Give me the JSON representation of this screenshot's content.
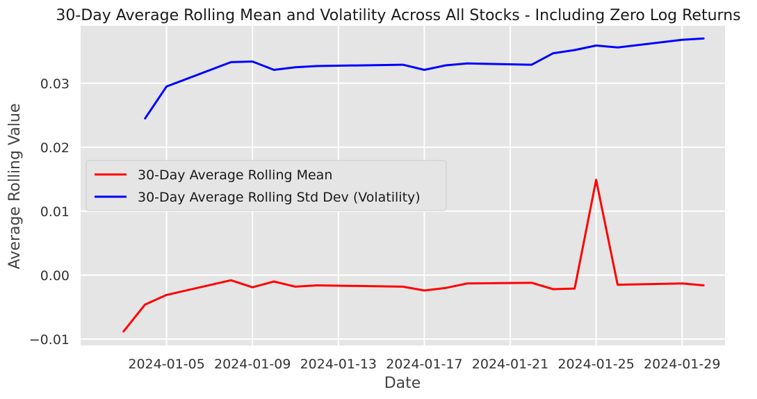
{
  "chart_data": {
    "type": "line",
    "title": "30-Day Average Rolling Mean and Volatility Across All Stocks - Including Zero Log Returns",
    "xlabel": "Date",
    "ylabel": "Average Rolling Value",
    "xlim": [
      "2024-01-01",
      "2024-01-31"
    ],
    "ylim": [
      -0.011,
      0.039
    ],
    "x_ticks": [
      "2024-01-05",
      "2024-01-09",
      "2024-01-13",
      "2024-01-17",
      "2024-01-21",
      "2024-01-25",
      "2024-01-29"
    ],
    "y_ticks": [
      -0.01,
      0.0,
      0.01,
      0.02,
      0.03
    ],
    "y_tick_labels": [
      "−0.01",
      "0.00",
      "0.01",
      "0.02",
      "0.03"
    ],
    "grid": true,
    "legend_position": "center-left",
    "series": [
      {
        "name": "30-Day Average Rolling Mean",
        "color": "#ff0000",
        "points": [
          [
            "2024-01-03",
            -0.0088
          ],
          [
            "2024-01-04",
            -0.0046
          ],
          [
            "2024-01-05",
            -0.0031
          ],
          [
            "2024-01-08",
            -0.0008
          ],
          [
            "2024-01-09",
            -0.0019
          ],
          [
            "2024-01-10",
            -0.001
          ],
          [
            "2024-01-11",
            -0.0018
          ],
          [
            "2024-01-12",
            -0.0016
          ],
          [
            "2024-01-16",
            -0.0018
          ],
          [
            "2024-01-17",
            -0.0024
          ],
          [
            "2024-01-18",
            -0.002
          ],
          [
            "2024-01-19",
            -0.0013
          ],
          [
            "2024-01-22",
            -0.0012
          ],
          [
            "2024-01-23",
            -0.0022
          ],
          [
            "2024-01-24",
            -0.0021
          ],
          [
            "2024-01-25",
            0.0149
          ],
          [
            "2024-01-26",
            -0.0015
          ],
          [
            "2024-01-29",
            -0.0013
          ],
          [
            "2024-01-30",
            -0.0016
          ]
        ]
      },
      {
        "name": "30-Day Average Rolling Std Dev (Volatility)",
        "color": "#0000ff",
        "points": [
          [
            "2024-01-04",
            0.0245
          ],
          [
            "2024-01-05",
            0.0295
          ],
          [
            "2024-01-08",
            0.0333
          ],
          [
            "2024-01-09",
            0.0334
          ],
          [
            "2024-01-10",
            0.0321
          ],
          [
            "2024-01-11",
            0.0325
          ],
          [
            "2024-01-12",
            0.0327
          ],
          [
            "2024-01-16",
            0.0329
          ],
          [
            "2024-01-17",
            0.0321
          ],
          [
            "2024-01-18",
            0.0328
          ],
          [
            "2024-01-19",
            0.0331
          ],
          [
            "2024-01-22",
            0.0329
          ],
          [
            "2024-01-23",
            0.0347
          ],
          [
            "2024-01-24",
            0.0352
          ],
          [
            "2024-01-25",
            0.0359
          ],
          [
            "2024-01-26",
            0.0356
          ],
          [
            "2024-01-29",
            0.0368
          ],
          [
            "2024-01-30",
            0.037
          ]
        ]
      }
    ]
  }
}
